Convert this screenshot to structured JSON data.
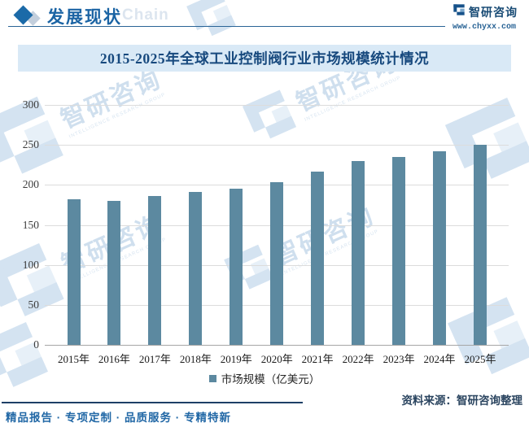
{
  "header": {
    "section_title": "发展现状",
    "watermark_suffix": "Chain",
    "brand_name": "智研咨询",
    "brand_url": "www.chyxx.com"
  },
  "chart_data": {
    "type": "bar",
    "title": "2015-2025年全球工业控制阀行业市场规模统计情况",
    "categories": [
      "2015年",
      "2016年",
      "2017年",
      "2018年",
      "2019年",
      "2020年",
      "2021年",
      "2022年",
      "2023年",
      "2024年",
      "2025年"
    ],
    "values": [
      182,
      180,
      186,
      191,
      195,
      203,
      217,
      230,
      235,
      242,
      250
    ],
    "series_name": "市场规模（亿美元）",
    "xlabel": "",
    "ylabel": "",
    "ylim": [
      0,
      300
    ],
    "yticks": [
      0,
      50,
      100,
      150,
      200,
      250,
      300
    ],
    "grid": true,
    "legend_position": "bottom",
    "bar_color": "#5c89a0"
  },
  "footer": {
    "source": "资料来源：智研咨询整理",
    "tagline": "精品报告 · 专项定制 · 品质服务 · 专精特新"
  },
  "watermark": {
    "text": "智研咨询",
    "caption": "INTELLIGENCE RESEARCH GROUP"
  },
  "colors": {
    "accent_blue": "#1b64a4",
    "title_band_bg": "#d9e9f6",
    "title_text": "#17497e",
    "bar": "#5c89a0",
    "gridline": "#dcdcdc",
    "footer_line": "#1d3f66"
  }
}
